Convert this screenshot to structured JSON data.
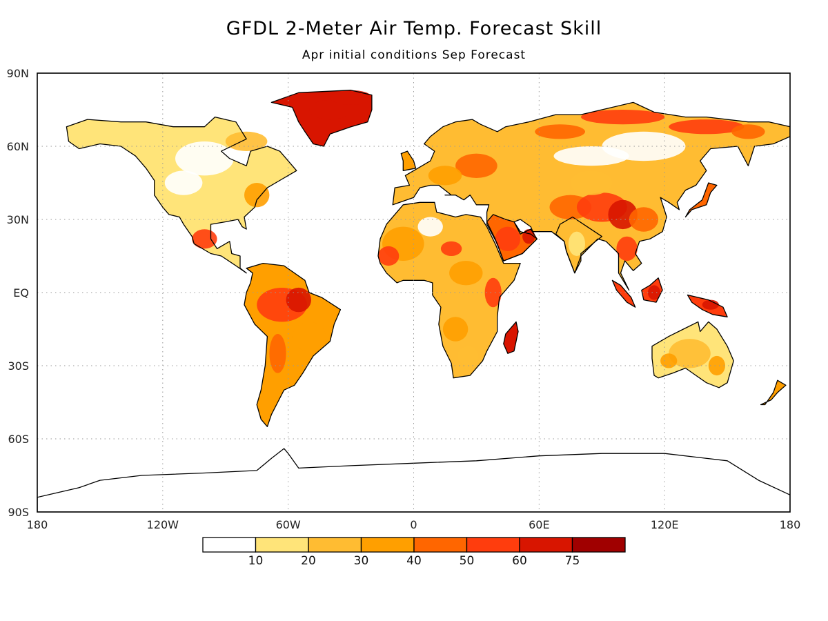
{
  "title": "GFDL 2-Meter Air Temp. Forecast Skill",
  "subtitle": "Apr initial conditions  Sep Forecast",
  "map": {
    "projection": "equirectangular",
    "lat_labels": [
      "90N",
      "60N",
      "30N",
      "EQ",
      "30S",
      "60S",
      "90S"
    ],
    "lat_values": [
      90,
      60,
      30,
      0,
      -30,
      -60,
      -90
    ],
    "lon_labels": [
      "180",
      "120W",
      "60W",
      "0",
      "60E",
      "120E",
      "180"
    ],
    "lon_values": [
      -180,
      -120,
      -60,
      0,
      60,
      120,
      180
    ],
    "grid": "dotted",
    "ocean_color": "#ffffff",
    "coastline_color": "#000000",
    "skill_regions": [
      {
        "name": "Greenland",
        "level": 6
      },
      {
        "name": "Northern Siberia",
        "level": 5
      },
      {
        "name": "Amazon basin",
        "level": 6
      },
      {
        "name": "Sahara and West Africa",
        "level": 4
      },
      {
        "name": "Arabian Peninsula",
        "level": 5
      },
      {
        "name": "Tibetan Plateau and China",
        "level": 5
      },
      {
        "name": "East Africa",
        "level": 5
      },
      {
        "name": "Madagascar",
        "level": 6
      },
      {
        "name": "Maritime Continent",
        "level": 6
      },
      {
        "name": "Mexico",
        "level": 5
      },
      {
        "name": "Europe",
        "level": 3
      },
      {
        "name": "Australia",
        "level": 1
      }
    ]
  },
  "colorbar": {
    "labels": [
      "10",
      "20",
      "30",
      "40",
      "50",
      "60",
      "75"
    ],
    "colors": [
      "#ffffff",
      "#ffe479",
      "#ffbc32",
      "#ff9f00",
      "#ff6600",
      "#ff3d0d",
      "#d81500",
      "#a00000"
    ]
  }
}
